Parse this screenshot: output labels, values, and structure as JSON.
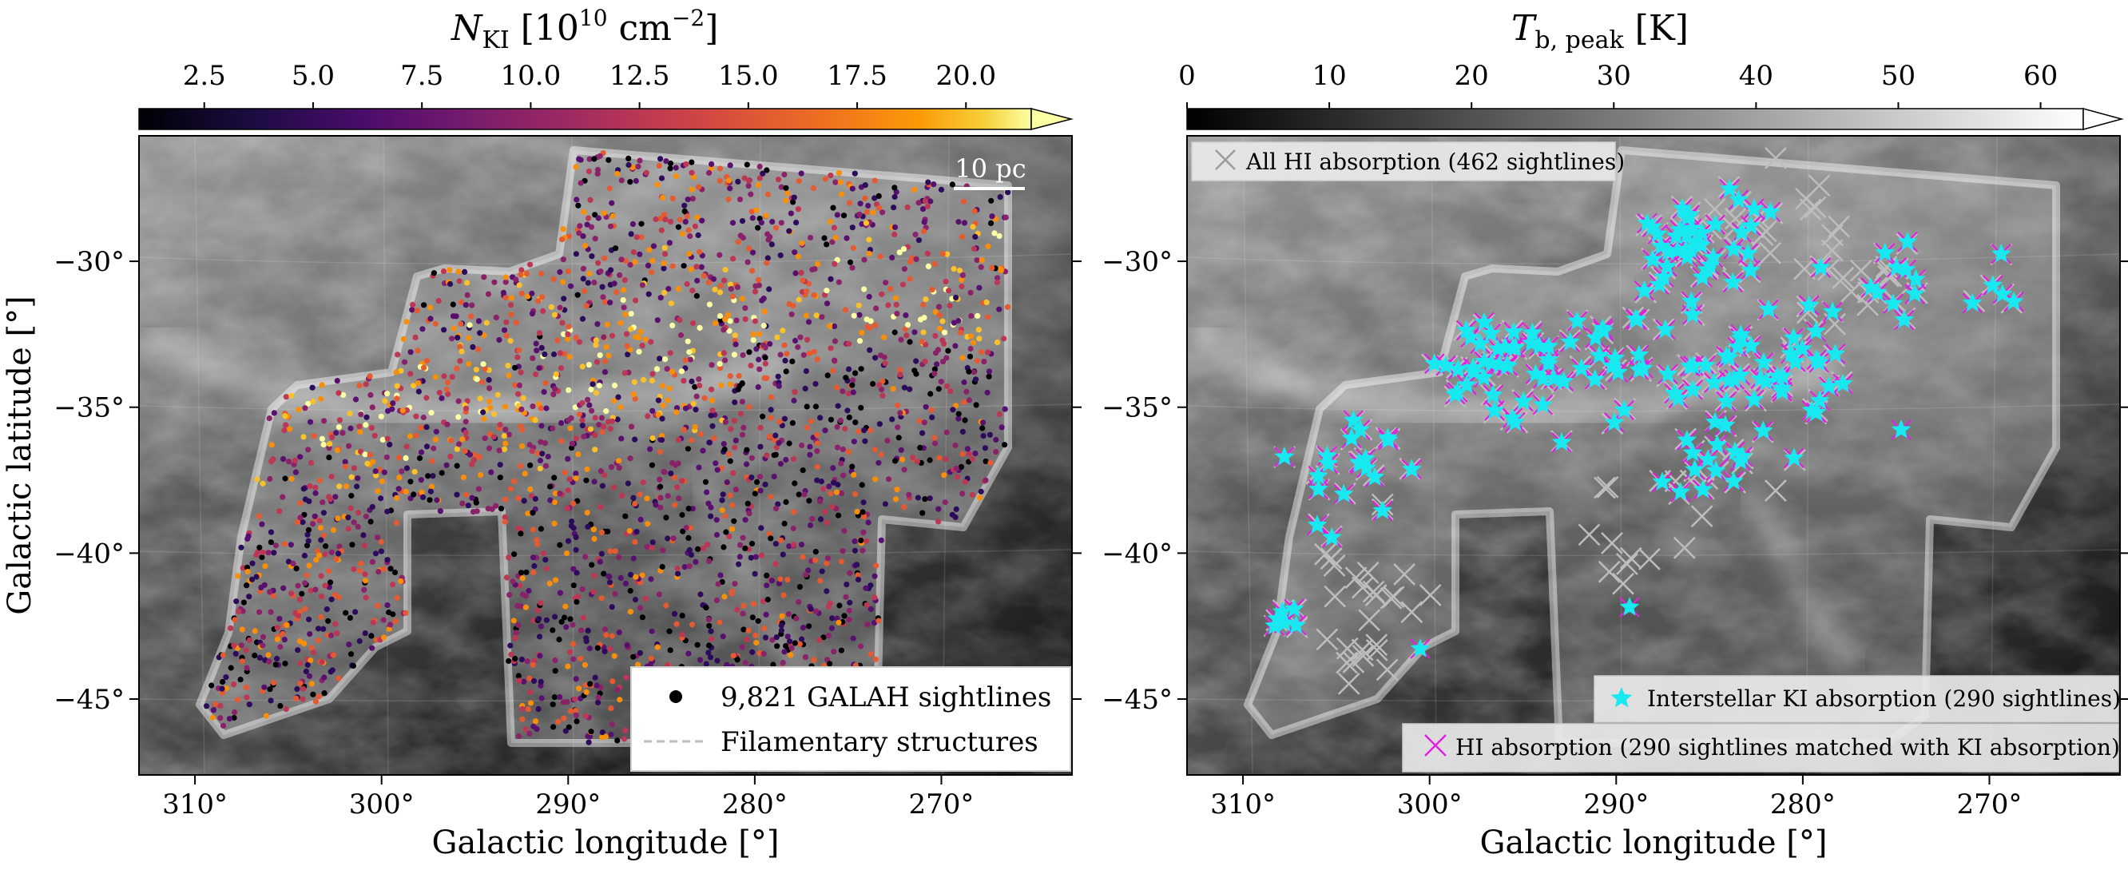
{
  "chart_data": [
    {
      "type": "scatter",
      "colorbar": {
        "label_main": "N",
        "label_sub": "KI",
        "label_units": " [10",
        "label_sup": "10",
        "label_units2": " cm",
        "label_sup2": "−2",
        "label_close": "]",
        "ticks": [
          "2.5",
          "5.0",
          "7.5",
          "10.0",
          "12.5",
          "15.0",
          "17.5",
          "20.0"
        ],
        "tick_values": [
          2.5,
          5.0,
          7.5,
          10.0,
          12.5,
          15.0,
          17.5,
          20.0
        ],
        "range": [
          1.0,
          21.5
        ],
        "colormap": "inferno",
        "extend": "max"
      },
      "xlabel": "Galactic longitude [°]",
      "ylabel": "Galactic latitude [°]",
      "xticks": [
        "310°",
        "300°",
        "290°",
        "280°",
        "270°"
      ],
      "xtick_values": [
        310,
        300,
        290,
        280,
        270
      ],
      "yticks": [
        "−30°",
        "−35°",
        "−40°",
        "−45°"
      ],
      "ytick_values": [
        -30,
        -35,
        -40,
        -45
      ],
      "xlim": [
        313,
        263
      ],
      "ylim": [
        -47.6,
        -25.7
      ],
      "scalebar_label": "10 pc",
      "legend": [
        {
          "marker": "dot",
          "label": "9,821 GALAH sightlines"
        },
        {
          "marker": "dashed-line",
          "label": "Filamentary structures"
        }
      ],
      "point_colors": [
        "#000004",
        "#2c0b5a",
        "#57106e",
        "#8a226a",
        "#bc3754",
        "#e45a31",
        "#f98e09",
        "#fac228",
        "#fcffa4"
      ]
    },
    {
      "type": "scatter",
      "colorbar": {
        "label_main": "T",
        "label_sub": "b, peak",
        "label_units": " [K]",
        "ticks": [
          "0",
          "10",
          "20",
          "30",
          "40",
          "50",
          "60"
        ],
        "tick_values": [
          0,
          10,
          20,
          30,
          40,
          50,
          60
        ],
        "range": [
          0,
          63
        ],
        "colormap": "gray",
        "extend": "max"
      },
      "xlabel": "Galactic longitude [°]",
      "xticks": [
        "310°",
        "300°",
        "290°",
        "280°",
        "270°"
      ],
      "xtick_values": [
        310,
        300,
        290,
        280,
        270
      ],
      "yticks": [
        "−30°",
        "−35°",
        "−40°",
        "−45°"
      ],
      "ytick_values": [
        -30,
        -35,
        -40,
        -45
      ],
      "xlim": [
        313,
        263
      ],
      "ylim": [
        -47.6,
        -25.7
      ],
      "legend": [
        {
          "marker": "gray-x",
          "label": "All HI absorption (462 sightlines)"
        },
        {
          "marker": "cyan-star",
          "label": "Interstellar KI absorption (290 sightlines)"
        },
        {
          "marker": "magenta-x",
          "label": "HI absorption (290 sightlines matched with KI absorption)"
        }
      ],
      "series": [
        {
          "name": "All HI absorption (462 sightlines)",
          "color": "#bdbdbd",
          "marker": "x"
        },
        {
          "name": "Interstellar KI absorption (290 sightlines)",
          "color": "#18e8f0",
          "marker": "star"
        },
        {
          "name": "HI absorption (290 sightlines matched with KI absorption)",
          "color": "#e020e0",
          "marker": "x"
        }
      ]
    }
  ]
}
